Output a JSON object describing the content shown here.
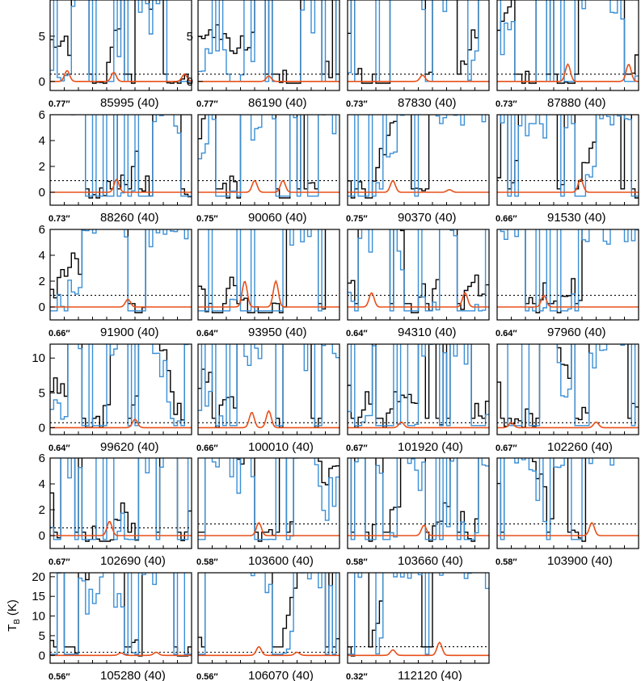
{
  "figure": {
    "ylabel_main": "T",
    "ylabel_sub": "B",
    "ylabel_unit": "(K)"
  },
  "colors": {
    "observed": "#000000",
    "model_total": "#3a8fd6",
    "model_species": "#e8501a",
    "threshold": "#000000"
  },
  "chart_data": [
    {
      "type": "line",
      "row": 0,
      "col": 0,
      "resolution": "0.77″",
      "freq": "85995",
      "channels": "(40)",
      "ylim": [
        -1,
        9
      ],
      "yticks": [
        0,
        5
      ],
      "threshold": 0.8,
      "peaks": [
        [
          0.12,
          1.2
        ],
        [
          0.45,
          1.0
        ],
        [
          0.95,
          0.8
        ]
      ]
    },
    {
      "type": "line",
      "row": 0,
      "col": 1,
      "resolution": "0.77″",
      "freq": "86190",
      "channels": "(40)",
      "ylim": [
        -1,
        9
      ],
      "yticks": [
        0,
        5
      ],
      "threshold": 0.8,
      "peaks": [
        [
          0.5,
          0.6
        ]
      ]
    },
    {
      "type": "line",
      "row": 0,
      "col": 2,
      "resolution": "0.73″",
      "freq": "87830",
      "channels": "(40)",
      "ylim": [
        -1,
        9
      ],
      "yticks": [],
      "threshold": 0.8,
      "peaks": [
        [
          0.53,
          0.7
        ]
      ]
    },
    {
      "type": "line",
      "row": 0,
      "col": 3,
      "resolution": "0.73″",
      "freq": "87880",
      "channels": "(40)",
      "ylim": [
        -1,
        9
      ],
      "yticks": [],
      "threshold": 0.8,
      "peaks": [
        [
          0.5,
          1.9
        ],
        [
          0.93,
          1.9
        ]
      ]
    },
    {
      "type": "line",
      "row": 1,
      "col": 0,
      "resolution": "0.73″",
      "freq": "88260",
      "channels": "(40)",
      "ylim": [
        -1,
        6
      ],
      "yticks": [
        0,
        2,
        4,
        6
      ],
      "threshold": 0.9,
      "peaks": [
        [
          0.47,
          1.0
        ]
      ]
    },
    {
      "type": "line",
      "row": 1,
      "col": 1,
      "resolution": "0.75″",
      "freq": "90060",
      "channels": "(40)",
      "ylim": [
        -1,
        6
      ],
      "yticks": [],
      "threshold": 0.9,
      "peaks": [
        [
          0.4,
          0.9
        ],
        [
          0.6,
          0.9
        ]
      ]
    },
    {
      "type": "line",
      "row": 1,
      "col": 2,
      "resolution": "0.75″",
      "freq": "90370",
      "channels": "(40)",
      "ylim": [
        -1,
        6
      ],
      "yticks": [],
      "threshold": 0.9,
      "peaks": [
        [
          0.32,
          0.9
        ],
        [
          0.72,
          0.2
        ]
      ]
    },
    {
      "type": "line",
      "row": 1,
      "col": 3,
      "resolution": "0.66″",
      "freq": "91530",
      "channels": "(40)",
      "ylim": [
        -1,
        6
      ],
      "yticks": [],
      "threshold": 0.9,
      "peaks": [
        [
          0.59,
          1.0
        ]
      ]
    },
    {
      "type": "line",
      "row": 2,
      "col": 0,
      "resolution": "0.66″",
      "freq": "91900",
      "channels": "(40)",
      "ylim": [
        -1,
        6
      ],
      "yticks": [
        0,
        2,
        4,
        6
      ],
      "threshold": 0.9,
      "peaks": [
        [
          0.55,
          0.6
        ]
      ]
    },
    {
      "type": "line",
      "row": 2,
      "col": 1,
      "resolution": "0.64″",
      "freq": "93950",
      "channels": "(40)",
      "ylim": [
        -1,
        6
      ],
      "yticks": [],
      "threshold": 0.9,
      "peaks": [
        [
          0.33,
          2.0
        ],
        [
          0.55,
          2.0
        ]
      ]
    },
    {
      "type": "line",
      "row": 2,
      "col": 2,
      "resolution": "0.64″",
      "freq": "94310",
      "channels": "(40)",
      "ylim": [
        -1,
        6
      ],
      "yticks": [],
      "threshold": 0.9,
      "peaks": [
        [
          0.17,
          1.1
        ],
        [
          0.83,
          1.1
        ]
      ]
    },
    {
      "type": "line",
      "row": 2,
      "col": 3,
      "resolution": "0.64″",
      "freq": "97960",
      "channels": "(40)",
      "ylim": [
        -1,
        6
      ],
      "yticks": [],
      "threshold": 0.9,
      "peaks": [
        [
          0.33,
          0.9
        ]
      ]
    },
    {
      "type": "line",
      "row": 3,
      "col": 0,
      "resolution": "0.64″",
      "freq": "99620",
      "channels": "(40)",
      "ylim": [
        -1,
        12
      ],
      "yticks": [
        0,
        5,
        10
      ],
      "threshold": 0.7,
      "peaks": [
        [
          0.6,
          1.2
        ]
      ]
    },
    {
      "type": "line",
      "row": 3,
      "col": 1,
      "resolution": "0.66″",
      "freq": "100010",
      "channels": "(40)",
      "ylim": [
        -1,
        12
      ],
      "yticks": [],
      "threshold": 0.7,
      "peaks": [
        [
          0.38,
          2.2
        ],
        [
          0.5,
          2.4
        ]
      ]
    },
    {
      "type": "line",
      "row": 3,
      "col": 2,
      "resolution": "0.67″",
      "freq": "101920",
      "channels": "(40)",
      "ylim": [
        -1,
        12
      ],
      "yticks": [],
      "threshold": 0.7,
      "peaks": [
        [
          0.38,
          0.8
        ]
      ]
    },
    {
      "type": "line",
      "row": 3,
      "col": 3,
      "resolution": "0.67″",
      "freq": "102260",
      "channels": "(40)",
      "ylim": [
        -1,
        12
      ],
      "yticks": [],
      "threshold": 0.7,
      "peaks": [
        [
          0.1,
          0.7
        ],
        [
          0.7,
          0.8
        ]
      ]
    },
    {
      "type": "line",
      "row": 4,
      "col": 0,
      "resolution": "0.67″",
      "freq": "102690",
      "channels": "(40)",
      "ylim": [
        -1,
        6
      ],
      "yticks": [
        0,
        2,
        4,
        6
      ],
      "threshold": 0.6,
      "peaks": [
        [
          0.42,
          1.1
        ]
      ]
    },
    {
      "type": "line",
      "row": 4,
      "col": 1,
      "resolution": "0.58″",
      "freq": "103600",
      "channels": "(40)",
      "ylim": [
        -1,
        6
      ],
      "yticks": [],
      "threshold": 0.9,
      "peaks": [
        [
          0.43,
          1.0
        ]
      ]
    },
    {
      "type": "line",
      "row": 4,
      "col": 2,
      "resolution": "0.58″",
      "freq": "103660",
      "channels": "(40)",
      "ylim": [
        -1,
        6
      ],
      "yticks": [],
      "threshold": 0.9,
      "peaks": [
        [
          0.54,
          0.8
        ]
      ]
    },
    {
      "type": "line",
      "row": 4,
      "col": 3,
      "resolution": "0.58″",
      "freq": "103900",
      "channels": "(40)",
      "ylim": [
        -1,
        6
      ],
      "yticks": [],
      "threshold": 0.9,
      "peaks": [
        [
          0.67,
          1.0
        ]
      ]
    },
    {
      "type": "line",
      "row": 5,
      "col": 0,
      "resolution": "0.56″",
      "freq": "105280",
      "channels": "(40)",
      "ylim": [
        -2,
        21
      ],
      "yticks": [
        0,
        5,
        10,
        15,
        20
      ],
      "threshold": 0.8,
      "peaks": [
        [
          0.5,
          0.6
        ],
        [
          0.75,
          0.8
        ]
      ]
    },
    {
      "type": "line",
      "row": 5,
      "col": 1,
      "resolution": "0.56″",
      "freq": "106070",
      "channels": "(40)",
      "ylim": [
        -2,
        21
      ],
      "yticks": [],
      "threshold": 0.8,
      "peaks": [
        [
          0.43,
          2.2
        ],
        [
          0.7,
          0.8
        ]
      ]
    },
    {
      "type": "line",
      "row": 5,
      "col": 2,
      "resolution": "0.32″",
      "freq": "112120",
      "channels": "(40)",
      "ylim": [
        -2,
        21
      ],
      "yticks": [],
      "threshold": 2.2,
      "peaks": [
        [
          0.32,
          1.4
        ],
        [
          0.65,
          3.3
        ]
      ]
    }
  ]
}
